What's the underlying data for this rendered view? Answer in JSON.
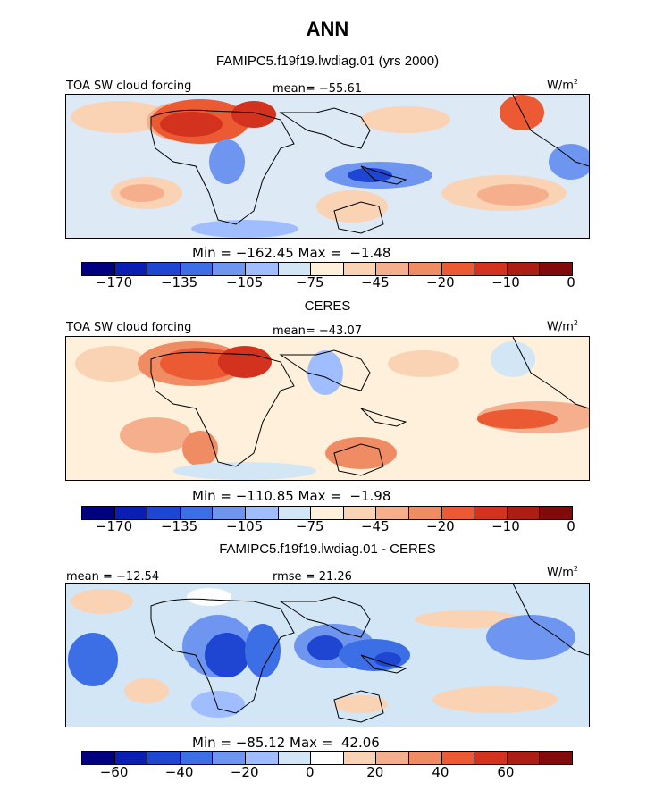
{
  "title": "ANN",
  "panels": [
    {
      "title": "FAMIPC5.f19f19.lwdiag.01 (yrs 2000)",
      "left_label": "TOA SW cloud forcing",
      "center_label": "mean= −55.61",
      "unit_label": "W/m",
      "unit_sup": "2",
      "minmax": "Min = −162.45 Max =  −1.48",
      "colorbar": {
        "colors": [
          "#000080",
          "#0a1eb4",
          "#1e46d2",
          "#3c6ee6",
          "#6e96f0",
          "#a0beff",
          "#d2e6f5",
          "#fff0dc",
          "#fad2b4",
          "#f5af8c",
          "#f08c64",
          "#eb5a32",
          "#d2321e",
          "#aa1e14",
          "#820a0a"
        ],
        "ticks": [
          "−170",
          "−135",
          "−105",
          "−75",
          "−45",
          "−20",
          "−10",
          "0"
        ]
      }
    },
    {
      "title": "CERES",
      "left_label": "TOA SW cloud forcing",
      "center_label": "mean= −43.07",
      "unit_label": "W/m",
      "unit_sup": "2",
      "minmax": "Min = −110.85 Max =  −1.98",
      "colorbar": {
        "colors": [
          "#000080",
          "#0a1eb4",
          "#1e46d2",
          "#3c6ee6",
          "#6e96f0",
          "#a0beff",
          "#d2e6f5",
          "#fff0dc",
          "#fad2b4",
          "#f5af8c",
          "#f08c64",
          "#eb5a32",
          "#d2321e",
          "#aa1e14",
          "#820a0a"
        ],
        "ticks": [
          "−170",
          "−135",
          "−105",
          "−75",
          "−45",
          "−20",
          "−10",
          "0"
        ]
      }
    },
    {
      "title": "FAMIPC5.f19f19.lwdiag.01 - CERES",
      "left_label": "mean = −12.54",
      "center_label": "rmse =  21.26",
      "unit_label": "W/m",
      "unit_sup": "2",
      "minmax": "Min = −85.12 Max =  42.06",
      "colorbar": {
        "colors": [
          "#000080",
          "#0a1eb4",
          "#1e46d2",
          "#3c6ee6",
          "#6e96f0",
          "#a0beff",
          "#d2e6f5",
          "#ffffff",
          "#fad2b4",
          "#f5af8c",
          "#f08c64",
          "#eb5a32",
          "#d2321e",
          "#aa1e14",
          "#820a0a"
        ],
        "ticks": [
          "−60",
          "−40",
          "−20",
          "0",
          "20",
          "40",
          "60"
        ]
      }
    }
  ]
}
